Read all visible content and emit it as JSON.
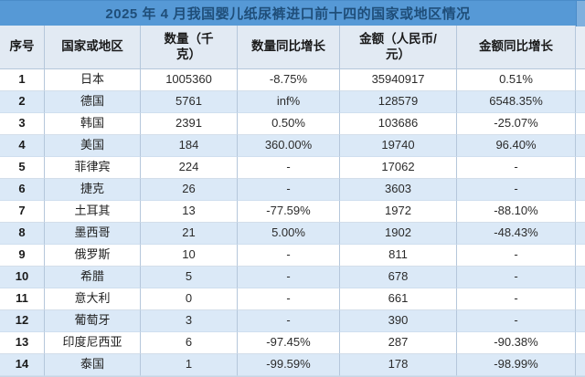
{
  "title": "2025 年 4 月我国婴儿纸尿裤进口前十四的国家或地区情况",
  "columns": [
    "序号",
    "国家或地区",
    "数量（千克）",
    "数量同比增长",
    "金额（人民币/元）",
    "金额同比增长"
  ],
  "rows": [
    [
      "1",
      "日本",
      "1005360",
      "-8.75%",
      "35940917",
      "0.51%"
    ],
    [
      "2",
      "德国",
      "5761",
      "inf%",
      "128579",
      "6548.35%"
    ],
    [
      "3",
      "韩国",
      "2391",
      "0.50%",
      "103686",
      "-25.07%"
    ],
    [
      "4",
      "美国",
      "184",
      "360.00%",
      "19740",
      "96.40%"
    ],
    [
      "5",
      "菲律宾",
      "224",
      "-",
      "17062",
      "-"
    ],
    [
      "6",
      "捷克",
      "26",
      "-",
      "3603",
      "-"
    ],
    [
      "7",
      "土耳其",
      "13",
      "-77.59%",
      "1972",
      "-88.10%"
    ],
    [
      "8",
      "墨西哥",
      "21",
      "5.00%",
      "1902",
      "-48.43%"
    ],
    [
      "9",
      "俄罗斯",
      "10",
      "-",
      "811",
      "-"
    ],
    [
      "10",
      "希腊",
      "5",
      "-",
      "678",
      "-"
    ],
    [
      "11",
      "意大利",
      "0",
      "-",
      "661",
      "-"
    ],
    [
      "12",
      "葡萄牙",
      "3",
      "-",
      "390",
      "-"
    ],
    [
      "13",
      "印度尼西亚",
      "6",
      "-97.45%",
      "287",
      "-90.38%"
    ],
    [
      "14",
      "泰国",
      "1",
      "-99.59%",
      "178",
      "-98.99%"
    ]
  ],
  "colors": {
    "title_bg": "#5699d6",
    "title_text": "#1f4e79",
    "header_bg": "#e2eaf3",
    "even_row_bg": "#dbe9f7",
    "border_vertical": "#b5c7db",
    "border_horizontal": "#d3deea"
  }
}
